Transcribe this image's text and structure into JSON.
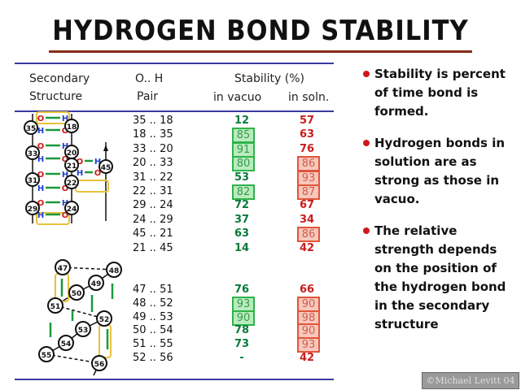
{
  "title": "HYDROGEN BOND STABILITY",
  "table": {
    "headers": {
      "secondary_line1": "Secondary",
      "secondary_line2": "Structure",
      "pair_line1": "O.. H",
      "pair_line2": "Pair",
      "stability": "Stability (%)",
      "in_vacuo": "in vacuo",
      "in_soln": "in soln."
    },
    "helix_rows": [
      {
        "pair": "35 .. 18",
        "vacuo": "12",
        "soln": "57",
        "vacuo_boxed": false,
        "soln_boxed": false
      },
      {
        "pair": "18 .. 35",
        "vacuo": "85",
        "soln": "63",
        "vacuo_boxed": true,
        "soln_boxed": false
      },
      {
        "pair": "33 .. 20",
        "vacuo": "91",
        "soln": "76",
        "vacuo_boxed": true,
        "soln_boxed": false
      },
      {
        "pair": "20 .. 33",
        "vacuo": "80",
        "soln": "86",
        "vacuo_boxed": true,
        "soln_boxed": true
      },
      {
        "pair": "31 .. 22",
        "vacuo": "53",
        "soln": "93",
        "vacuo_boxed": false,
        "soln_boxed": true
      },
      {
        "pair": "22 .. 31",
        "vacuo": "82",
        "soln": "87",
        "vacuo_boxed": true,
        "soln_boxed": true
      },
      {
        "pair": "29 .. 24",
        "vacuo": "72",
        "soln": "67",
        "vacuo_boxed": false,
        "soln_boxed": false
      },
      {
        "pair": "24 .. 29",
        "vacuo": "37",
        "soln": "34",
        "vacuo_boxed": false,
        "soln_boxed": false
      },
      {
        "pair": "45 .. 21",
        "vacuo": "63",
        "soln": "86",
        "vacuo_boxed": false,
        "soln_boxed": true
      },
      {
        "pair": "21 .. 45",
        "vacuo": "14",
        "soln": "42",
        "vacuo_boxed": false,
        "soln_boxed": false
      }
    ],
    "sheet_rows": [
      {
        "pair": "47 .. 51",
        "vacuo": "76",
        "soln": "66",
        "vacuo_boxed": false,
        "soln_boxed": false
      },
      {
        "pair": "48 .. 52",
        "vacuo": "93",
        "soln": "90",
        "vacuo_boxed": true,
        "soln_boxed": true
      },
      {
        "pair": "49 .. 53",
        "vacuo": "90",
        "soln": "98",
        "vacuo_boxed": true,
        "soln_boxed": true
      },
      {
        "pair": "50 .. 54",
        "vacuo": "78",
        "soln": "90",
        "vacuo_boxed": false,
        "soln_boxed": true
      },
      {
        "pair": "51 .. 55",
        "vacuo": "73",
        "soln": "93",
        "vacuo_boxed": false,
        "soln_boxed": true
      },
      {
        "pair": "52 .. 56",
        "vacuo": "-",
        "soln": "42",
        "vacuo_boxed": false,
        "soln_boxed": false
      }
    ]
  },
  "diagrams": {
    "atom_o": "O",
    "atom_h": "H",
    "helix_residues": [
      "35",
      "18",
      "33",
      "20",
      "21",
      "31",
      "22",
      "29",
      "24",
      "45"
    ],
    "sheet_residues": [
      "47",
      "48",
      "49",
      "50",
      "51",
      "52",
      "53",
      "54",
      "55",
      "56"
    ]
  },
  "bullets": [
    "Stability is percent of time bond is formed.",
    "Hydrogen bonds in solution are as strong as those in vacuo.",
    "The relative strength depends on the position of the hydrogen bond in the secondary structure"
  ],
  "credit": "©Michael Levitt 04",
  "colors": {
    "vacuo": "#0a7a3a",
    "soln": "#c81e1e",
    "rule": "#3a3aa0",
    "bullet": "#d01818"
  }
}
